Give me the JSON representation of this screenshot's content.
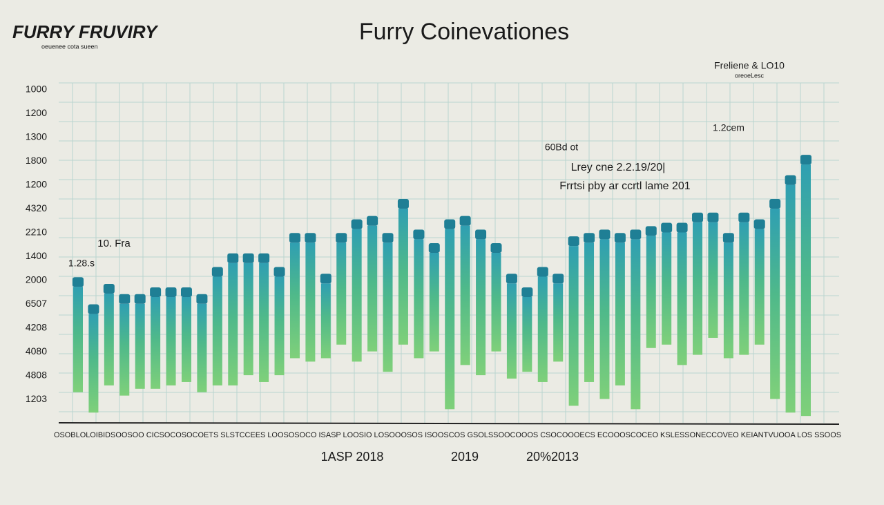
{
  "logo": {
    "text": "FURRY FRUVIRY",
    "subtext": "oeuenee cota sueen"
  },
  "chart_data": {
    "type": "bar",
    "title": "Furry Coinevationes",
    "y_axis_labels": [
      "1000",
      "1200",
      "1300",
      "1800",
      "1200",
      "4320",
      "2210",
      "1400",
      "2000",
      "6507",
      "4208",
      "4080",
      "4808",
      "1203"
    ],
    "values": [
      40,
      32,
      38,
      35,
      35,
      37,
      37,
      37,
      35,
      43,
      47,
      47,
      47,
      43,
      53,
      53,
      41,
      53,
      57,
      58,
      53,
      63,
      54,
      50,
      57,
      58,
      54,
      50,
      41,
      37,
      43,
      41,
      52,
      53,
      54,
      53,
      54,
      55,
      56,
      56,
      59,
      59,
      53,
      59,
      57,
      63,
      70,
      76
    ],
    "base": [
      9,
      3,
      11,
      8,
      10,
      10,
      11,
      12,
      9,
      11,
      11,
      14,
      12,
      14,
      19,
      18,
      19,
      23,
      18,
      21,
      15,
      23,
      19,
      21,
      4,
      17,
      14,
      21,
      13,
      15,
      12,
      18,
      5,
      12,
      7,
      11,
      4,
      22,
      23,
      17,
      20,
      25,
      19,
      20,
      23,
      7,
      3,
      2
    ],
    "ylim": [
      0,
      100
    ],
    "x_axis_strip": "OSOBLOLOIBIDSOOSOO CICSOCOSOCOETS SLSTCCEES LOOSOSOCO ISASP LOOSIO LOSOOOSOS ISOOSCOS GSOLSSOOCOOOS CSOCOOOECS ECOOOSCOCEO KSLESSONECCOVEO KEIANTVUOOA LOS SSOOS",
    "x_labels": [
      "1ASP 2018",
      "2019",
      "20%2013"
    ],
    "annotations": [
      {
        "text": "Freliene & LO10",
        "sub": "oreoeLesc"
      },
      {
        "text": "1.2cem"
      },
      {
        "text": "60Bd ot"
      },
      {
        "text": "Lrey cne 2.2.19/20|"
      },
      {
        "text": "Frrtsi pby ar ccrtl lame 201"
      },
      {
        "text": "10. Fra"
      },
      {
        "text": "1.28.s"
      }
    ]
  }
}
